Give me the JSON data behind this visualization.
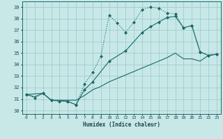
{
  "xlabel": "Humidex (Indice chaleur)",
  "xlim": [
    -0.5,
    23.5
  ],
  "ylim": [
    29.7,
    39.5
  ],
  "xticks": [
    0,
    1,
    2,
    3,
    4,
    5,
    6,
    7,
    8,
    9,
    10,
    11,
    12,
    13,
    14,
    15,
    16,
    17,
    18,
    19,
    20,
    21,
    22,
    23
  ],
  "yticks": [
    30,
    31,
    32,
    33,
    34,
    35,
    36,
    37,
    38,
    39
  ],
  "bg_color": "#c8e8e8",
  "grid_color": "#a0cccc",
  "line_color": "#1a6868",
  "line1_x": [
    0,
    1,
    2,
    3,
    4,
    5,
    6,
    7,
    8,
    9,
    10,
    11,
    12,
    13,
    14,
    15,
    16,
    17,
    18,
    19,
    20,
    21,
    22,
    23
  ],
  "line1_y": [
    31.4,
    31.1,
    31.5,
    30.9,
    30.8,
    30.8,
    30.5,
    32.3,
    33.3,
    34.7,
    38.3,
    37.6,
    36.8,
    37.7,
    38.8,
    39.0,
    38.9,
    38.5,
    38.4,
    37.2,
    37.4,
    35.1,
    34.8,
    34.9
  ],
  "line2_x": [
    0,
    2,
    3,
    5,
    6,
    7,
    8,
    10,
    12,
    14,
    15,
    16,
    17,
    18,
    19,
    20,
    21,
    22,
    23
  ],
  "line2_y": [
    31.4,
    31.5,
    30.9,
    30.8,
    30.5,
    31.8,
    32.5,
    34.3,
    35.2,
    36.8,
    37.3,
    37.7,
    38.1,
    38.2,
    37.2,
    37.4,
    35.1,
    34.8,
    34.9
  ],
  "line3_x": [
    0,
    1,
    2,
    3,
    4,
    5,
    6,
    7,
    8,
    9,
    10,
    11,
    12,
    13,
    14,
    15,
    16,
    17,
    18,
    19,
    20,
    21,
    22,
    23
  ],
  "line3_y": [
    31.4,
    31.2,
    31.5,
    30.9,
    30.9,
    30.9,
    30.9,
    31.3,
    31.8,
    32.1,
    32.5,
    32.8,
    33.1,
    33.4,
    33.7,
    34.0,
    34.3,
    34.6,
    35.0,
    34.5,
    34.5,
    34.3,
    34.8,
    34.9
  ]
}
